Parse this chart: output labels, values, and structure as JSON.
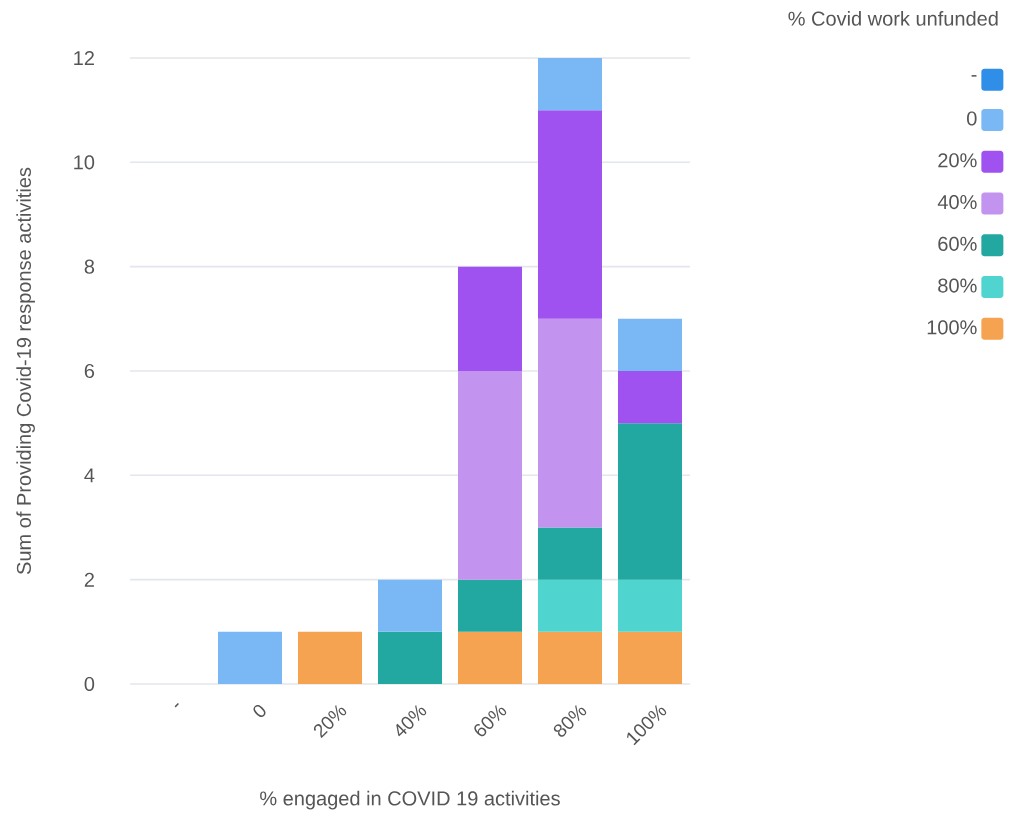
{
  "chart_data": {
    "type": "bar",
    "stacked": true,
    "xlabel": "% engaged in COVID 19 activities",
    "ylabel": "Sum of Providing Covid-19 response activities",
    "legend_title": "% Covid work unfunded",
    "categories": [
      "-",
      "0",
      "20%",
      "40%",
      "60%",
      "80%",
      "100%"
    ],
    "series": [
      {
        "name": "100%",
        "color": "#f5a350",
        "values": [
          null,
          null,
          1,
          null,
          1,
          1,
          1
        ]
      },
      {
        "name": "80%",
        "color": "#4fd4cf",
        "values": [
          null,
          null,
          null,
          null,
          null,
          1,
          1
        ]
      },
      {
        "name": "60%",
        "color": "#22a8a0",
        "values": [
          null,
          null,
          null,
          1,
          1,
          1,
          3
        ]
      },
      {
        "name": "40%",
        "color": "#c294ef",
        "values": [
          null,
          null,
          null,
          null,
          4,
          4,
          null
        ]
      },
      {
        "name": "20%",
        "color": "#a052f0",
        "values": [
          null,
          null,
          null,
          null,
          2,
          4,
          1
        ]
      },
      {
        "name": "0",
        "color": "#7ab8f5",
        "values": [
          null,
          1,
          null,
          1,
          null,
          1,
          1
        ]
      },
      {
        "name": "-",
        "color": "#2f8fe8",
        "values": [
          null,
          null,
          null,
          null,
          null,
          null,
          null
        ]
      }
    ],
    "ylim": [
      0,
      12
    ],
    "yticks": [
      0,
      2,
      4,
      6,
      8,
      10,
      12
    ],
    "grid": "y",
    "legend": "top right"
  }
}
